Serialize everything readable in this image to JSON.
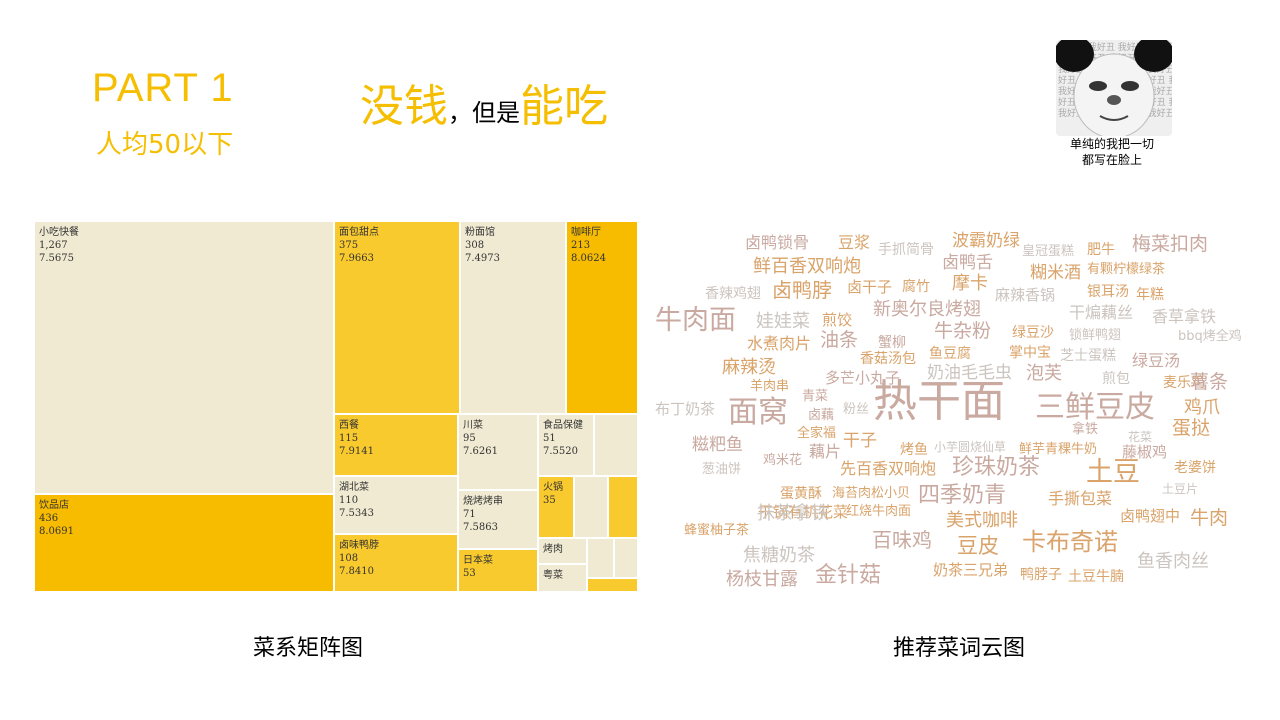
{
  "header": {
    "part_title": "PART 1",
    "part_subtitle": "人均50以下",
    "headline_a": "没钱",
    "headline_sep": "，但是",
    "headline_b": "能吃"
  },
  "meme": {
    "background_text": "我好丑 我好丑 我好丑 我好丑\n好丑 我好丑 我好丑 我好丑 我\n我好丑 我好丑 我好丑 我好丑\n好丑 我好丑 我好丑 我好丑 我\n我好丑 我好丑 我好丑 我好丑\n好丑 我好丑 我好丑 我好丑 我\n我好丑 我好丑 我好丑 我好丑",
    "caption_line1": "单纯的我把一切",
    "caption_line2": "都写在脸上"
  },
  "captions": {
    "treemap": "菜系矩阵图",
    "cloud": "推荐菜词云图"
  },
  "treemap": {
    "tiles": [
      {
        "name": "小吃快餐",
        "count": "1,267",
        "score": "7.5675"
      },
      {
        "name": "饮品店",
        "count": "436",
        "score": "8.0691"
      },
      {
        "name": "面包甜点",
        "count": "375",
        "score": "7.9663"
      },
      {
        "name": "粉面馆",
        "count": "308",
        "score": "7.4973"
      },
      {
        "name": "咖啡厅",
        "count": "213",
        "score": "8.0624"
      },
      {
        "name": "西餐",
        "count": "115",
        "score": "7.9141"
      },
      {
        "name": "湖北菜",
        "count": "110",
        "score": "7.5343"
      },
      {
        "name": "卤味鸭脖",
        "count": "108",
        "score": "7.8410"
      },
      {
        "name": "川菜",
        "count": "95",
        "score": "7.6261"
      },
      {
        "name": "烧烤烤串",
        "count": "71",
        "score": "7.5863"
      },
      {
        "name": "日本菜",
        "count": "53",
        "score": ""
      },
      {
        "name": "食品保健",
        "count": "51",
        "score": "7.5520"
      },
      {
        "name": "火锅",
        "count": "35",
        "score": ""
      },
      {
        "name": "烤肉",
        "count": "",
        "score": ""
      },
      {
        "name": "粤菜",
        "count": "",
        "score": ""
      }
    ]
  },
  "cloud": {
    "words": [
      "卤鸭锁骨",
      "豆浆",
      "手抓简骨",
      "波霸奶绿",
      "皇冠蛋糕",
      "肥牛",
      "梅菜扣肉",
      "鲜百香双响炮",
      "卤鸭舌",
      "糊米酒",
      "有颗柠檬绿茶",
      "香辣鸡翅",
      "卤鸭脖",
      "卤干子",
      "腐竹",
      "摩卡",
      "麻辣香锅",
      "银耳汤",
      "年糕",
      "牛肉面",
      "娃娃菜",
      "煎饺",
      "新奥尔良烤翅",
      "干煸藕丝",
      "香草拿铁",
      "牛杂粉",
      "绿豆沙",
      "锁鲜鸭翅",
      "bbq烤全鸡",
      "水煮肉片",
      "油条",
      "蟹柳",
      "掌中宝",
      "芝士蛋糕",
      "绿豆汤",
      "香菇汤包",
      "鱼豆腐",
      "麻辣烫",
      "多芒小丸子",
      "奶油毛毛虫",
      "泡芙",
      "煎包",
      "麦乐鸡",
      "薯条",
      "羊肉串",
      "布丁奶茶",
      "青菜",
      "面窝",
      "热干面",
      "三鲜豆皮",
      "鸡爪",
      "卤藕",
      "粉丝",
      "全家福",
      "拿铁",
      "花菜",
      "蛋挞",
      "糍粑鱼",
      "干子",
      "烤鱼",
      "小芋圆烧仙草",
      "鲜芋青稞牛奶",
      "藤椒鸡",
      "藕片",
      "葱油饼",
      "鸡米花",
      "先百香双响炮",
      "珍珠奶茶",
      "土豆",
      "老婆饼",
      "蛋黄酥",
      "海苔肉松小贝",
      "四季奶青",
      "手撕包菜",
      "土豆片",
      "干锅有机花菜",
      "抹茶拿铁",
      "红烧牛肉面",
      "美式咖啡",
      "卤鸭翅中",
      "牛肉",
      "蜂蜜柚子茶",
      "百味鸡",
      "卡布奇诺",
      "焦糖奶茶",
      "豆皮",
      "鱼香肉丝",
      "杨枝甘露",
      "金针菇",
      "奶茶三兄弟",
      "鸭脖子",
      "土豆牛腩"
    ]
  },
  "colors": {
    "accent": "#F5BE00",
    "tile_light": "#F0EAD2",
    "tile_gold": "#F7BB00",
    "tile_mid": "#F9CA2E"
  }
}
